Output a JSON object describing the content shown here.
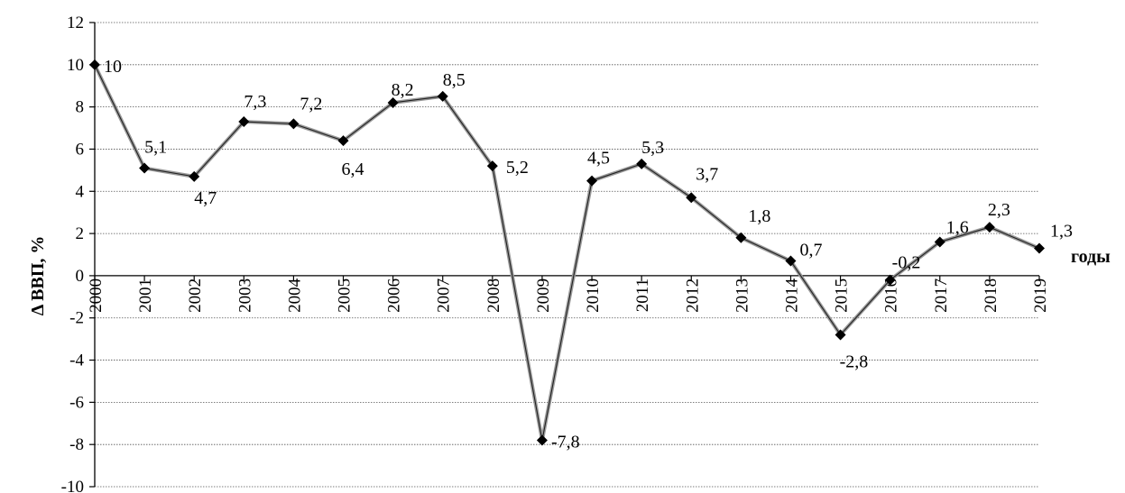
{
  "chart_data": {
    "type": "line",
    "title": "",
    "xlabel": "годы",
    "ylabel": "Δ ВВП, %",
    "ylim": [
      -10,
      12
    ],
    "yticks": [
      -10,
      -8,
      -6,
      -4,
      -2,
      0,
      2,
      4,
      6,
      8,
      10,
      12
    ],
    "ytick_labels": [
      "-10",
      "-8",
      "-6",
      "-4",
      "-2",
      "0",
      "2",
      "4",
      "6",
      "8",
      "10",
      "12"
    ],
    "grid": true,
    "legend": "none",
    "categories": [
      "2000",
      "2001",
      "2002",
      "2003",
      "2004",
      "2005",
      "2006",
      "2007",
      "2008",
      "2009",
      "2010",
      "2011",
      "2012",
      "2013",
      "2014",
      "2015",
      "2016",
      "2017",
      "2018",
      "2019"
    ],
    "series": [
      {
        "values": [
          10,
          5.1,
          4.7,
          7.3,
          7.2,
          6.4,
          8.2,
          8.5,
          5.2,
          -7.8,
          4.5,
          5.3,
          3.7,
          1.8,
          0.7,
          -2.8,
          -0.2,
          1.6,
          2.3,
          1.3
        ],
        "labels": [
          "10",
          "5,1",
          "4,7",
          "7,3",
          "7,2",
          "6,4",
          "8,2",
          "8,5",
          "5,2",
          "-7,8",
          "4,5",
          "5,3",
          "3,7",
          "1,8",
          "0,7",
          "-2,8",
          "-0,2",
          "1,6",
          "2,3",
          "1,3"
        ],
        "color": "#000000"
      }
    ]
  }
}
